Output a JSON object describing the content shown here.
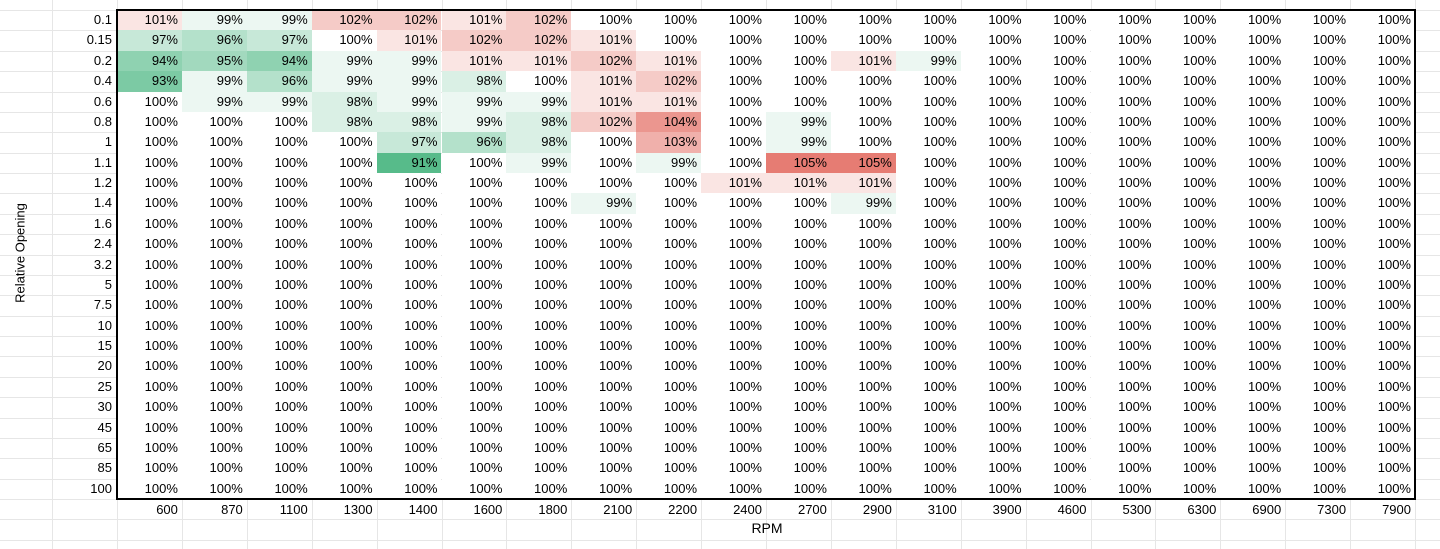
{
  "chart_data": {
    "type": "heatmap",
    "xlabel": "RPM",
    "ylabel": "Relative Opening",
    "x": [
      "600",
      "870",
      "1100",
      "1300",
      "1400",
      "1600",
      "1800",
      "2100",
      "2200",
      "2400",
      "2700",
      "2900",
      "3100",
      "3900",
      "4600",
      "5300",
      "6300",
      "6900",
      "7300",
      "7900"
    ],
    "y": [
      "0.1",
      "0.15",
      "0.2",
      "0.4",
      "0.6",
      "0.8",
      "1",
      "1.1",
      "1.2",
      "1.4",
      "1.6",
      "2.4",
      "3.2",
      "5",
      "7.5",
      "10",
      "15",
      "20",
      "25",
      "30",
      "45",
      "65",
      "85",
      "100"
    ],
    "values": [
      [
        101,
        99,
        99,
        102,
        102,
        101,
        102,
        100,
        100,
        100,
        100,
        100,
        100,
        100,
        100,
        100,
        100,
        100,
        100,
        100
      ],
      [
        97,
        96,
        97,
        100,
        101,
        102,
        102,
        101,
        100,
        100,
        100,
        100,
        100,
        100,
        100,
        100,
        100,
        100,
        100,
        100
      ],
      [
        94,
        95,
        94,
        99,
        99,
        101,
        101,
        102,
        101,
        100,
        100,
        101,
        99,
        100,
        100,
        100,
        100,
        100,
        100,
        100
      ],
      [
        93,
        99,
        96,
        99,
        99,
        98,
        100,
        101,
        102,
        100,
        100,
        100,
        100,
        100,
        100,
        100,
        100,
        100,
        100,
        100
      ],
      [
        100,
        99,
        99,
        98,
        99,
        99,
        99,
        101,
        101,
        100,
        100,
        100,
        100,
        100,
        100,
        100,
        100,
        100,
        100,
        100
      ],
      [
        100,
        100,
        100,
        98,
        98,
        99,
        98,
        102,
        104,
        100,
        99,
        100,
        100,
        100,
        100,
        100,
        100,
        100,
        100,
        100
      ],
      [
        100,
        100,
        100,
        100,
        97,
        96,
        98,
        100,
        103,
        100,
        99,
        100,
        100,
        100,
        100,
        100,
        100,
        100,
        100,
        100
      ],
      [
        100,
        100,
        100,
        100,
        91,
        100,
        99,
        100,
        99,
        100,
        105,
        105,
        100,
        100,
        100,
        100,
        100,
        100,
        100,
        100
      ],
      [
        100,
        100,
        100,
        100,
        100,
        100,
        100,
        100,
        100,
        101,
        101,
        101,
        100,
        100,
        100,
        100,
        100,
        100,
        100,
        100
      ],
      [
        100,
        100,
        100,
        100,
        100,
        100,
        100,
        99,
        100,
        100,
        100,
        99,
        100,
        100,
        100,
        100,
        100,
        100,
        100,
        100
      ],
      [
        100,
        100,
        100,
        100,
        100,
        100,
        100,
        100,
        100,
        100,
        100,
        100,
        100,
        100,
        100,
        100,
        100,
        100,
        100,
        100
      ],
      [
        100,
        100,
        100,
        100,
        100,
        100,
        100,
        100,
        100,
        100,
        100,
        100,
        100,
        100,
        100,
        100,
        100,
        100,
        100,
        100
      ],
      [
        100,
        100,
        100,
        100,
        100,
        100,
        100,
        100,
        100,
        100,
        100,
        100,
        100,
        100,
        100,
        100,
        100,
        100,
        100,
        100
      ],
      [
        100,
        100,
        100,
        100,
        100,
        100,
        100,
        100,
        100,
        100,
        100,
        100,
        100,
        100,
        100,
        100,
        100,
        100,
        100,
        100
      ],
      [
        100,
        100,
        100,
        100,
        100,
        100,
        100,
        100,
        100,
        100,
        100,
        100,
        100,
        100,
        100,
        100,
        100,
        100,
        100,
        100
      ],
      [
        100,
        100,
        100,
        100,
        100,
        100,
        100,
        100,
        100,
        100,
        100,
        100,
        100,
        100,
        100,
        100,
        100,
        100,
        100,
        100
      ],
      [
        100,
        100,
        100,
        100,
        100,
        100,
        100,
        100,
        100,
        100,
        100,
        100,
        100,
        100,
        100,
        100,
        100,
        100,
        100,
        100
      ],
      [
        100,
        100,
        100,
        100,
        100,
        100,
        100,
        100,
        100,
        100,
        100,
        100,
        100,
        100,
        100,
        100,
        100,
        100,
        100,
        100
      ],
      [
        100,
        100,
        100,
        100,
        100,
        100,
        100,
        100,
        100,
        100,
        100,
        100,
        100,
        100,
        100,
        100,
        100,
        100,
        100,
        100
      ],
      [
        100,
        100,
        100,
        100,
        100,
        100,
        100,
        100,
        100,
        100,
        100,
        100,
        100,
        100,
        100,
        100,
        100,
        100,
        100,
        100
      ],
      [
        100,
        100,
        100,
        100,
        100,
        100,
        100,
        100,
        100,
        100,
        100,
        100,
        100,
        100,
        100,
        100,
        100,
        100,
        100,
        100
      ],
      [
        100,
        100,
        100,
        100,
        100,
        100,
        100,
        100,
        100,
        100,
        100,
        100,
        100,
        100,
        100,
        100,
        100,
        100,
        100,
        100
      ],
      [
        100,
        100,
        100,
        100,
        100,
        100,
        100,
        100,
        100,
        100,
        100,
        100,
        100,
        100,
        100,
        100,
        100,
        100,
        100,
        100
      ],
      [
        100,
        100,
        100,
        100,
        100,
        100,
        100,
        100,
        100,
        100,
        100,
        100,
        100,
        100,
        100,
        100,
        100,
        100,
        100,
        100
      ]
    ],
    "value_suffix": "%",
    "color_low": "#57bb8a",
    "color_mid": "#ffffff",
    "color_high": "#e67c73",
    "grid": true
  }
}
